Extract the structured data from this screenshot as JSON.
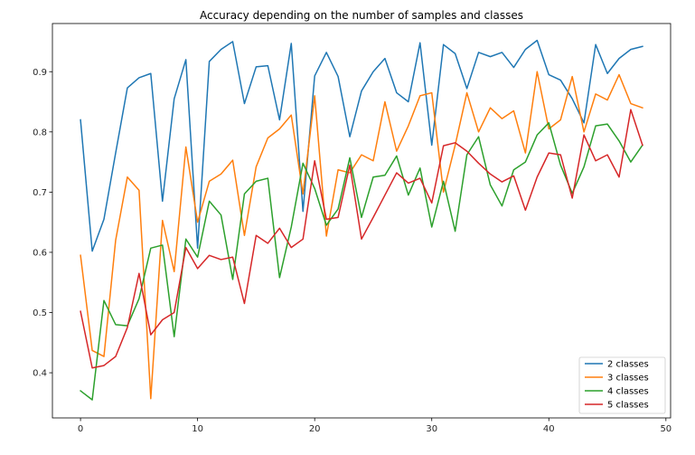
{
  "chart_data": {
    "type": "line",
    "title": "Accuracy depending on the number of samples and classes",
    "xlabel": "",
    "ylabel": "",
    "xlim": [
      -2.4,
      50.4
    ],
    "ylim": [
      0.325,
      0.98
    ],
    "xticks": [
      0,
      10,
      20,
      30,
      40,
      50
    ],
    "yticks": [
      0.4,
      0.5,
      0.6,
      0.7,
      0.8,
      0.9
    ],
    "xtick_labels": [
      "0",
      "10",
      "20",
      "30",
      "40",
      "50"
    ],
    "ytick_labels": [
      "0.4",
      "0.5",
      "0.6",
      "0.7",
      "0.8",
      "0.9"
    ],
    "grid": false,
    "legend_position": "lower-right",
    "x": [
      0,
      1,
      2,
      3,
      4,
      5,
      6,
      7,
      8,
      9,
      10,
      11,
      12,
      13,
      14,
      15,
      16,
      17,
      18,
      19,
      20,
      21,
      22,
      23,
      24,
      25,
      26,
      27,
      28,
      29,
      30,
      31,
      32,
      33,
      34,
      35,
      36,
      37,
      38,
      39,
      40,
      41,
      42,
      43,
      44,
      45,
      46,
      47,
      48
    ],
    "series": [
      {
        "name": "2 classes",
        "color": "#1f77b4",
        "values": [
          0.82,
          0.602,
          0.655,
          0.765,
          0.873,
          0.89,
          0.897,
          0.685,
          0.855,
          0.92,
          0.607,
          0.917,
          0.937,
          0.95,
          0.847,
          0.908,
          0.91,
          0.82,
          0.947,
          0.668,
          0.893,
          0.932,
          0.892,
          0.792,
          0.868,
          0.9,
          0.922,
          0.865,
          0.85,
          0.948,
          0.778,
          0.945,
          0.93,
          0.872,
          0.932,
          0.925,
          0.932,
          0.907,
          0.937,
          0.952,
          0.895,
          0.886,
          0.855,
          0.815,
          0.945,
          0.897,
          0.922,
          0.937,
          0.942
        ]
      },
      {
        "name": "3 classes",
        "color": "#ff7f0e",
        "values": [
          0.595,
          0.437,
          0.427,
          0.62,
          0.725,
          0.703,
          0.357,
          0.653,
          0.568,
          0.775,
          0.65,
          0.718,
          0.73,
          0.753,
          0.628,
          0.742,
          0.79,
          0.805,
          0.828,
          0.697,
          0.86,
          0.627,
          0.737,
          0.732,
          0.762,
          0.752,
          0.85,
          0.768,
          0.81,
          0.86,
          0.865,
          0.7,
          0.778,
          0.865,
          0.8,
          0.84,
          0.822,
          0.835,
          0.765,
          0.9,
          0.805,
          0.82,
          0.892,
          0.8,
          0.863,
          0.853,
          0.895,
          0.847,
          0.84
        ]
      },
      {
        "name": "4 classes",
        "color": "#2ca02c",
        "values": [
          0.37,
          0.355,
          0.52,
          0.48,
          0.478,
          0.523,
          0.607,
          0.612,
          0.46,
          0.622,
          0.592,
          0.685,
          0.662,
          0.555,
          0.697,
          0.718,
          0.723,
          0.558,
          0.642,
          0.748,
          0.706,
          0.645,
          0.672,
          0.757,
          0.658,
          0.725,
          0.728,
          0.76,
          0.695,
          0.74,
          0.642,
          0.718,
          0.635,
          0.762,
          0.792,
          0.712,
          0.677,
          0.737,
          0.75,
          0.795,
          0.815,
          0.745,
          0.698,
          0.742,
          0.81,
          0.813,
          0.785,
          0.75,
          0.778
        ]
      },
      {
        "name": "5 classes",
        "color": "#d62728",
        "values": [
          0.502,
          0.408,
          0.412,
          0.427,
          0.475,
          0.565,
          0.463,
          0.488,
          0.5,
          0.608,
          0.573,
          0.595,
          0.588,
          0.592,
          0.515,
          0.628,
          0.615,
          0.64,
          0.608,
          0.622,
          0.752,
          0.655,
          0.658,
          0.745,
          0.622,
          0.658,
          0.695,
          0.732,
          0.715,
          0.723,
          0.682,
          0.777,
          0.782,
          0.768,
          0.748,
          0.73,
          0.717,
          0.727,
          0.67,
          0.725,
          0.765,
          0.762,
          0.69,
          0.795,
          0.752,
          0.762,
          0.725,
          0.837,
          0.778
        ]
      }
    ]
  }
}
